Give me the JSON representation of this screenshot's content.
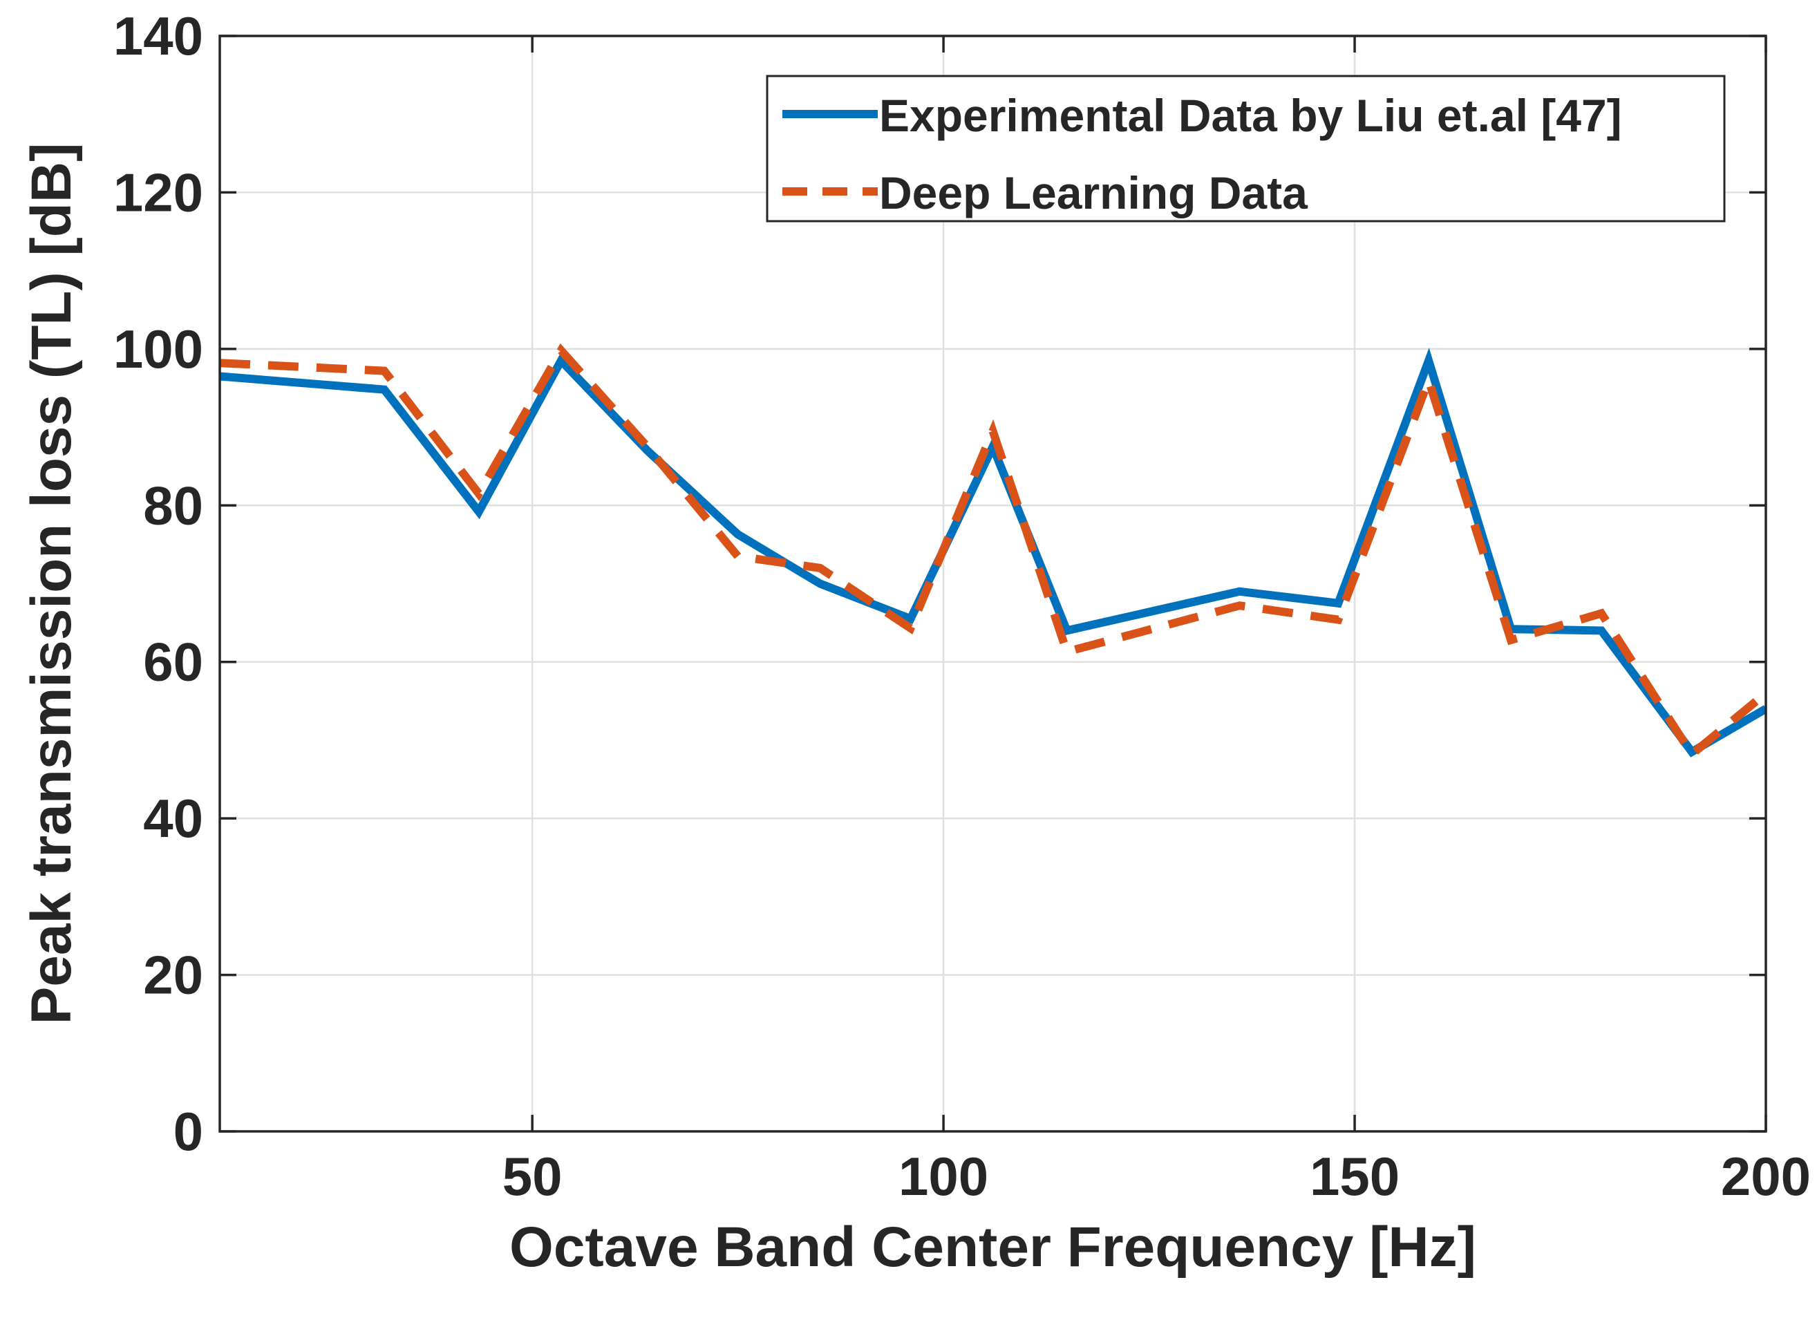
{
  "chart_data": {
    "type": "line",
    "title": "",
    "xlabel": "Octave Band Center Frequency [Hz]",
    "ylabel": "Peak transmission loss (TL) [dB]",
    "xlim": [
      12,
      200
    ],
    "ylim": [
      0,
      140
    ],
    "xticks": [
      50,
      100,
      150,
      200
    ],
    "xtick_labels": [
      "50",
      "100",
      "150",
      "200"
    ],
    "yticks": [
      0,
      20,
      40,
      60,
      80,
      100,
      120,
      140
    ],
    "ytick_labels": [
      "0",
      "20",
      "40",
      "60",
      "80",
      "100",
      "120",
      "140"
    ],
    "grid": true,
    "legend_position": "top-right",
    "series": [
      {
        "name": "Experimental Data by Liu et.al [47]",
        "style": "solid",
        "color": "#0072BD",
        "x": [
          12,
          32,
          43.5,
          53.5,
          64,
          75,
          85,
          96,
          106,
          115,
          136,
          148,
          159,
          169,
          180,
          191,
          200
        ],
        "values": [
          96.5,
          94.8,
          79.2,
          98.5,
          87.0,
          76.3,
          70.0,
          65.5,
          87.5,
          64.0,
          69.0,
          67.5,
          98.5,
          64.2,
          64.0,
          48.5,
          54.0
        ]
      },
      {
        "name": "Deep Learning Data",
        "style": "dashed",
        "color": "#D95319",
        "x": [
          12,
          32,
          43.5,
          53.5,
          64,
          75,
          85,
          96,
          106,
          115,
          136,
          148,
          159,
          169,
          180,
          191,
          200
        ],
        "values": [
          98.2,
          97.2,
          81.5,
          99.8,
          87.5,
          73.5,
          72.0,
          64.3,
          89.5,
          61.3,
          67.2,
          65.4,
          96.0,
          62.8,
          66.2,
          48.2,
          56.0
        ]
      }
    ]
  }
}
